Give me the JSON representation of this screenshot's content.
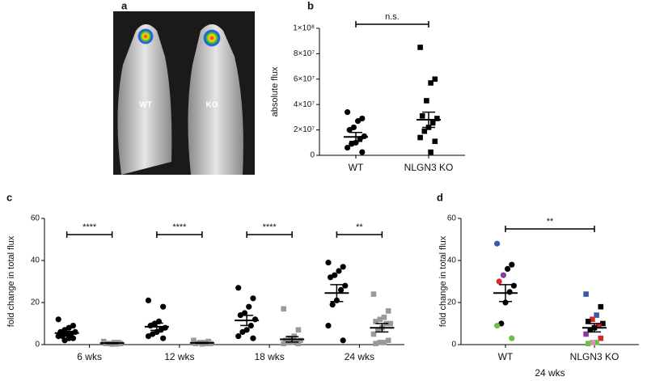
{
  "chart_data": [
    {
      "type": "image",
      "panel": "a",
      "labels": [
        "WT",
        "KO"
      ]
    },
    {
      "type": "dotplot",
      "panel": "b",
      "ylabel": "absolute flux",
      "categories": [
        "WT",
        "NLGN3 KO"
      ],
      "ylim": [
        0,
        100000000
      ],
      "yticks": [
        0,
        {
          "value": 20000000,
          "label": "2×10⁷"
        },
        {
          "value": 40000000,
          "label": "4×10⁷"
        },
        {
          "value": 60000000,
          "label": "6×10⁷"
        },
        {
          "value": 80000000,
          "label": "8×10⁷"
        },
        {
          "value": 100000000,
          "label": "1×10⁸"
        }
      ],
      "groups": [
        [
          {
            "marker": "circle",
            "color": "#000000",
            "points": [
              34000000,
              29000000,
              27000000,
              22000000,
              20000000,
              15000000,
              13000000,
              10000000,
              9000000,
              6000000,
              2500000
            ],
            "mean": 14500000,
            "sem": 3500000
          }
        ],
        [
          {
            "marker": "square",
            "color": "#000000",
            "points": [
              85000000,
              60000000,
              57000000,
              43000000,
              31000000,
              29000000,
              25500000,
              22000000,
              19000000,
              14000000,
              11000000,
              2500000
            ],
            "mean": 28000000,
            "sem": 6000000
          }
        ]
      ],
      "comparisons": [
        {
          "label": "n.s."
        }
      ]
    },
    {
      "type": "dotplot",
      "panel": "c",
      "ylabel": "fold change in total flux",
      "categories": [
        "6 wks",
        "12 wks",
        "18 wks",
        "24 wks"
      ],
      "ylim": [
        0,
        60
      ],
      "yticks": [
        0,
        20,
        40,
        60
      ],
      "groups": [
        [
          {
            "marker": "circle",
            "color": "#000000",
            "points": [
              12,
              9,
              8,
              7,
              6,
              6,
              5,
              5,
              4,
              4,
              3,
              3,
              2
            ],
            "mean": 5.5,
            "sem": 0.8
          },
          {
            "marker": "square",
            "color": "#999999",
            "points": [
              1.5,
              1,
              1,
              0.5,
              0.5,
              0.5,
              0.3,
              0.2
            ],
            "mean": 0.7,
            "sem": 0.2
          }
        ],
        [
          {
            "marker": "circle",
            "color": "#000000",
            "points": [
              21,
              18,
              11,
              10,
              9,
              8,
              7,
              6,
              5,
              4,
              3
            ],
            "mean": 8.5,
            "sem": 1.7
          },
          {
            "marker": "square",
            "color": "#999999",
            "points": [
              2,
              1.5,
              1,
              1,
              0.5,
              0.5,
              0.5,
              0.3
            ],
            "mean": 0.8,
            "sem": 0.2
          }
        ],
        [
          {
            "marker": "circle",
            "color": "#000000",
            "points": [
              27,
              22,
              18,
              15,
              14,
              12,
              9,
              7,
              6,
              4,
              3
            ],
            "mean": 11.5,
            "sem": 2.4
          },
          {
            "marker": "square",
            "color": "#999999",
            "points": [
              17,
              7,
              4,
              3,
              2,
              2,
              1.5,
              1,
              1,
              0.5,
              0.5
            ],
            "mean": 2.5,
            "sem": 1.3
          }
        ],
        [
          {
            "marker": "circle",
            "color": "#000000",
            "points": [
              39,
              37,
              35,
              33,
              32,
              28,
              26,
              21,
              19,
              9,
              2
            ],
            "mean": 24.5,
            "sem": 4
          },
          {
            "marker": "square",
            "color": "#999999",
            "points": [
              24,
              16,
              13,
              12,
              11,
              10,
              10,
              8,
              7,
              5,
              2,
              1,
              1,
              0.5
            ],
            "mean": 8,
            "sem": 2
          }
        ]
      ],
      "comparisons": [
        {
          "label": "****"
        },
        {
          "label": "****"
        },
        {
          "label": "****"
        },
        {
          "label": "**"
        }
      ]
    },
    {
      "type": "dotplot",
      "panel": "d",
      "ylabel": "fold change in total flux",
      "xlabel": "24 wks",
      "categories": [
        "WT",
        "NLGN3 KO"
      ],
      "ylim": [
        0,
        60
      ],
      "yticks": [
        0,
        20,
        40,
        60
      ],
      "groups": [
        [
          {
            "marker": "circle",
            "points": [
              48,
              38,
              36,
              33,
              30,
              28,
              25,
              20,
              10,
              9,
              3
            ],
            "colors": [
              "#3a5ba8",
              "#000000",
              "#000000",
              "#8b3a9c",
              "#d9262b",
              "#000000",
              "#000000",
              "#000000",
              "#000000",
              "#66c24a",
              "#66c24a"
            ],
            "mean": 24.5,
            "sem": 4
          }
        ],
        [
          {
            "marker": "square",
            "points": [
              24,
              18,
              14,
              12,
              11,
              10,
              9,
              8,
              7,
              5,
              3,
              1,
              1,
              0.5
            ],
            "colors": [
              "#3a5ba8",
              "#000000",
              "#3a5ba8",
              "#d9262b",
              "#000000",
              "#000000",
              "#d9262b",
              "#000000",
              "#000000",
              "#8b3a9c",
              "#d9262b",
              "#66c24a",
              "#e88ac0",
              "#66c24a"
            ],
            "mean": 8,
            "sem": 2
          }
        ]
      ],
      "comparisons": [
        {
          "label": "**"
        }
      ]
    }
  ]
}
